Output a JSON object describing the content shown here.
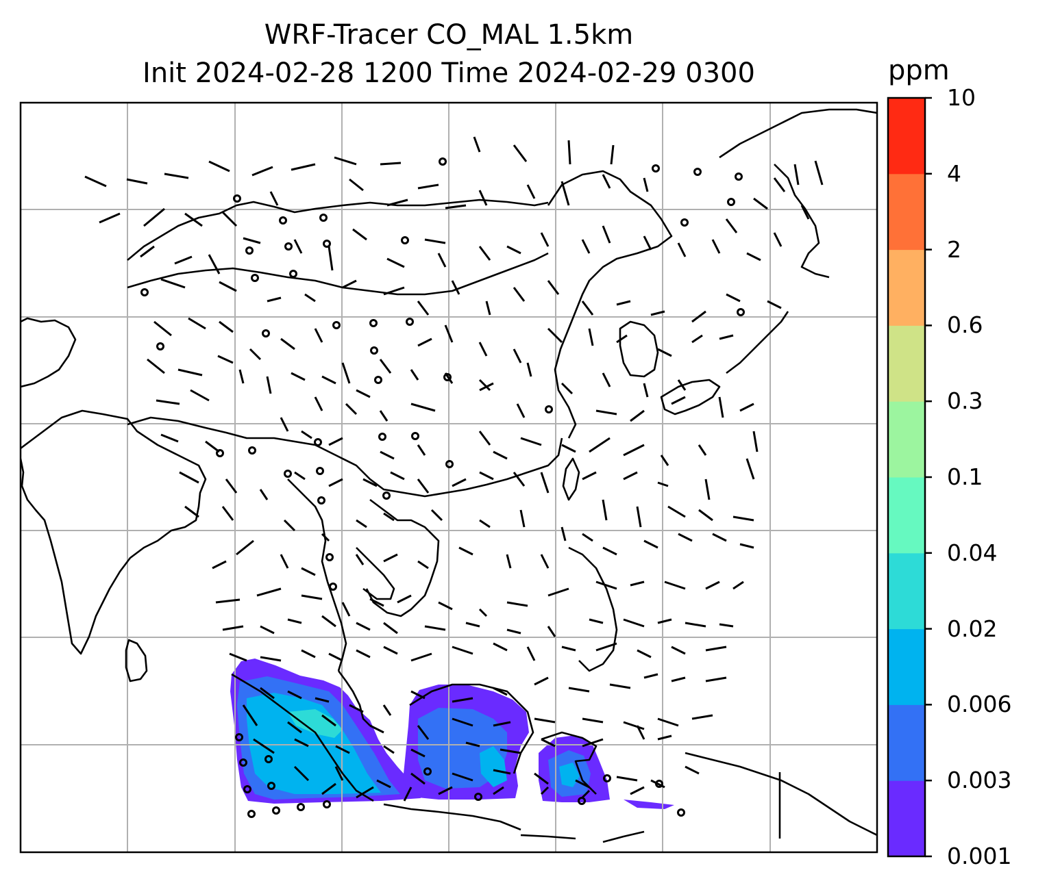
{
  "title": {
    "line1": "WRF-Tracer CO_MAL 1.5km",
    "line2": "Init 2024-02-28 1200 Time 2024-02-29 0300"
  },
  "colorbar": {
    "unit": "ppm",
    "tick_labels": [
      "0.001",
      "0.003",
      "0.006",
      "0.02",
      "0.04",
      "0.1",
      "0.3",
      "0.6",
      "2",
      "4",
      "10"
    ],
    "colors": [
      "#6a2bff",
      "#3371f5",
      "#00b3ef",
      "#2ddbd7",
      "#66f9c0",
      "#9cf59f",
      "#cfe387",
      "#ffb061",
      "#ff7137",
      "#ff2a13"
    ]
  },
  "map": {
    "gridlines": true,
    "gridline_color": "#b0b0b0",
    "coastline_color": "#000000",
    "tracer_field": "CO_MAL",
    "level": "1.5km"
  }
}
